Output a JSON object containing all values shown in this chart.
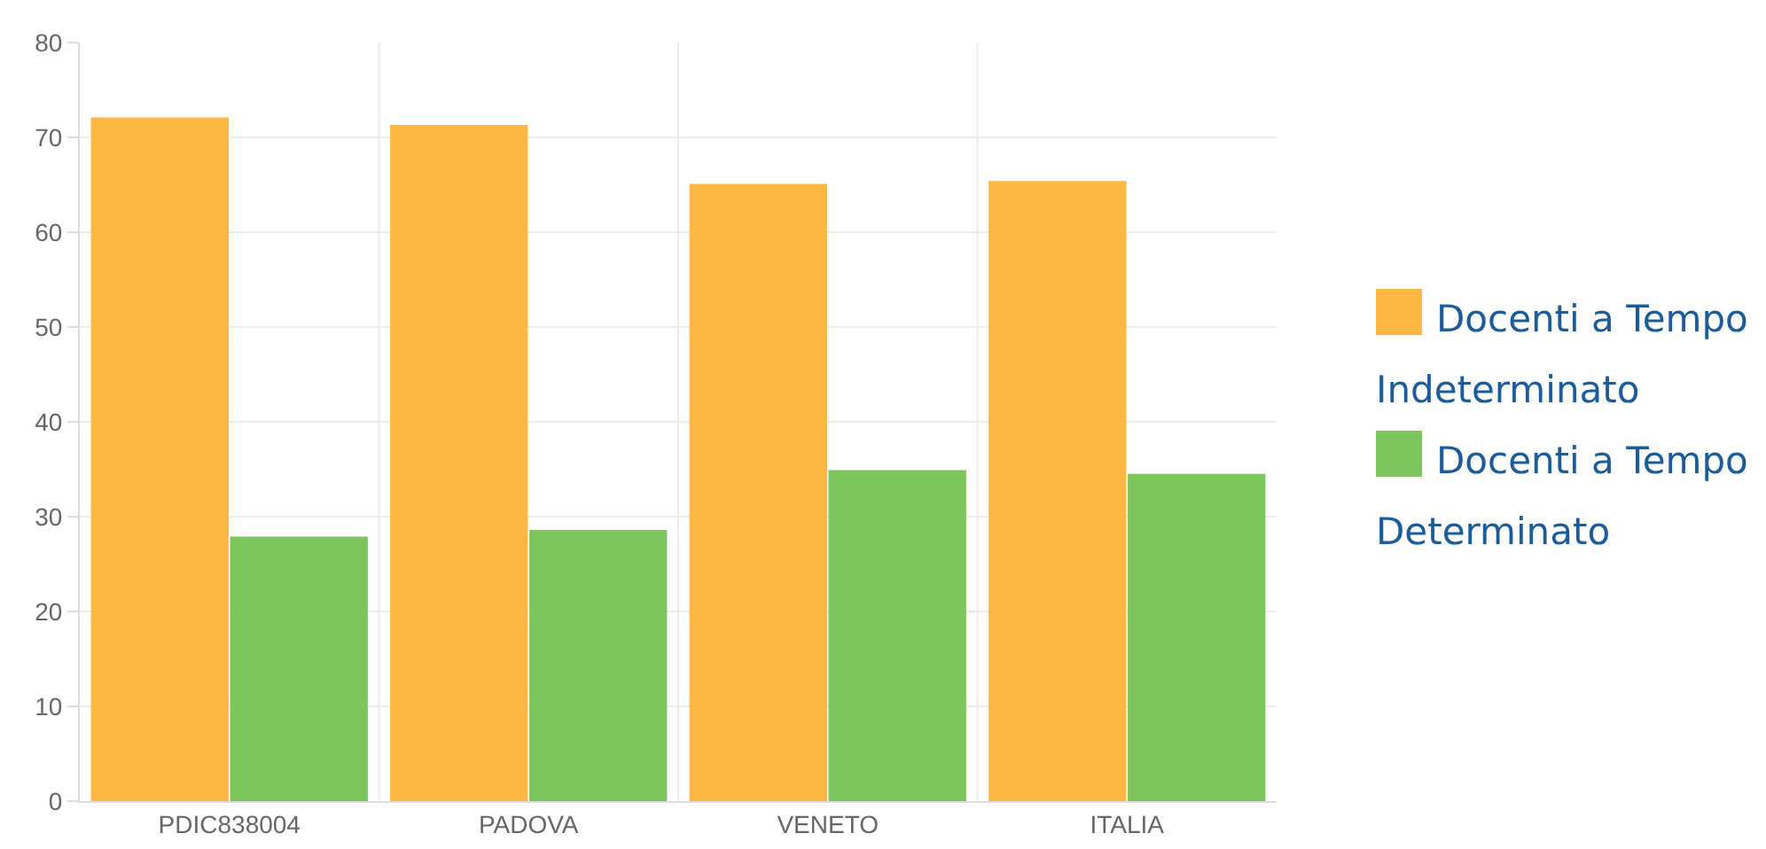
{
  "chart_data": {
    "type": "bar",
    "categories": [
      "PDIC838004",
      "PADOVA",
      "VENETO",
      "ITALIA"
    ],
    "series": [
      {
        "name": "Docenti a Tempo Indeterminato",
        "color": "#fdb844",
        "values": [
          72.1,
          71.3,
          65.1,
          65.4
        ]
      },
      {
        "name": "Docenti a Tempo Determinato",
        "color": "#7fc55d",
        "values": [
          27.9,
          28.6,
          34.9,
          34.5
        ]
      }
    ],
    "ylim": [
      0,
      80
    ],
    "yticks": [
      0,
      10,
      20,
      30,
      40,
      50,
      60,
      70,
      80
    ],
    "grid": true,
    "legend": "right"
  }
}
